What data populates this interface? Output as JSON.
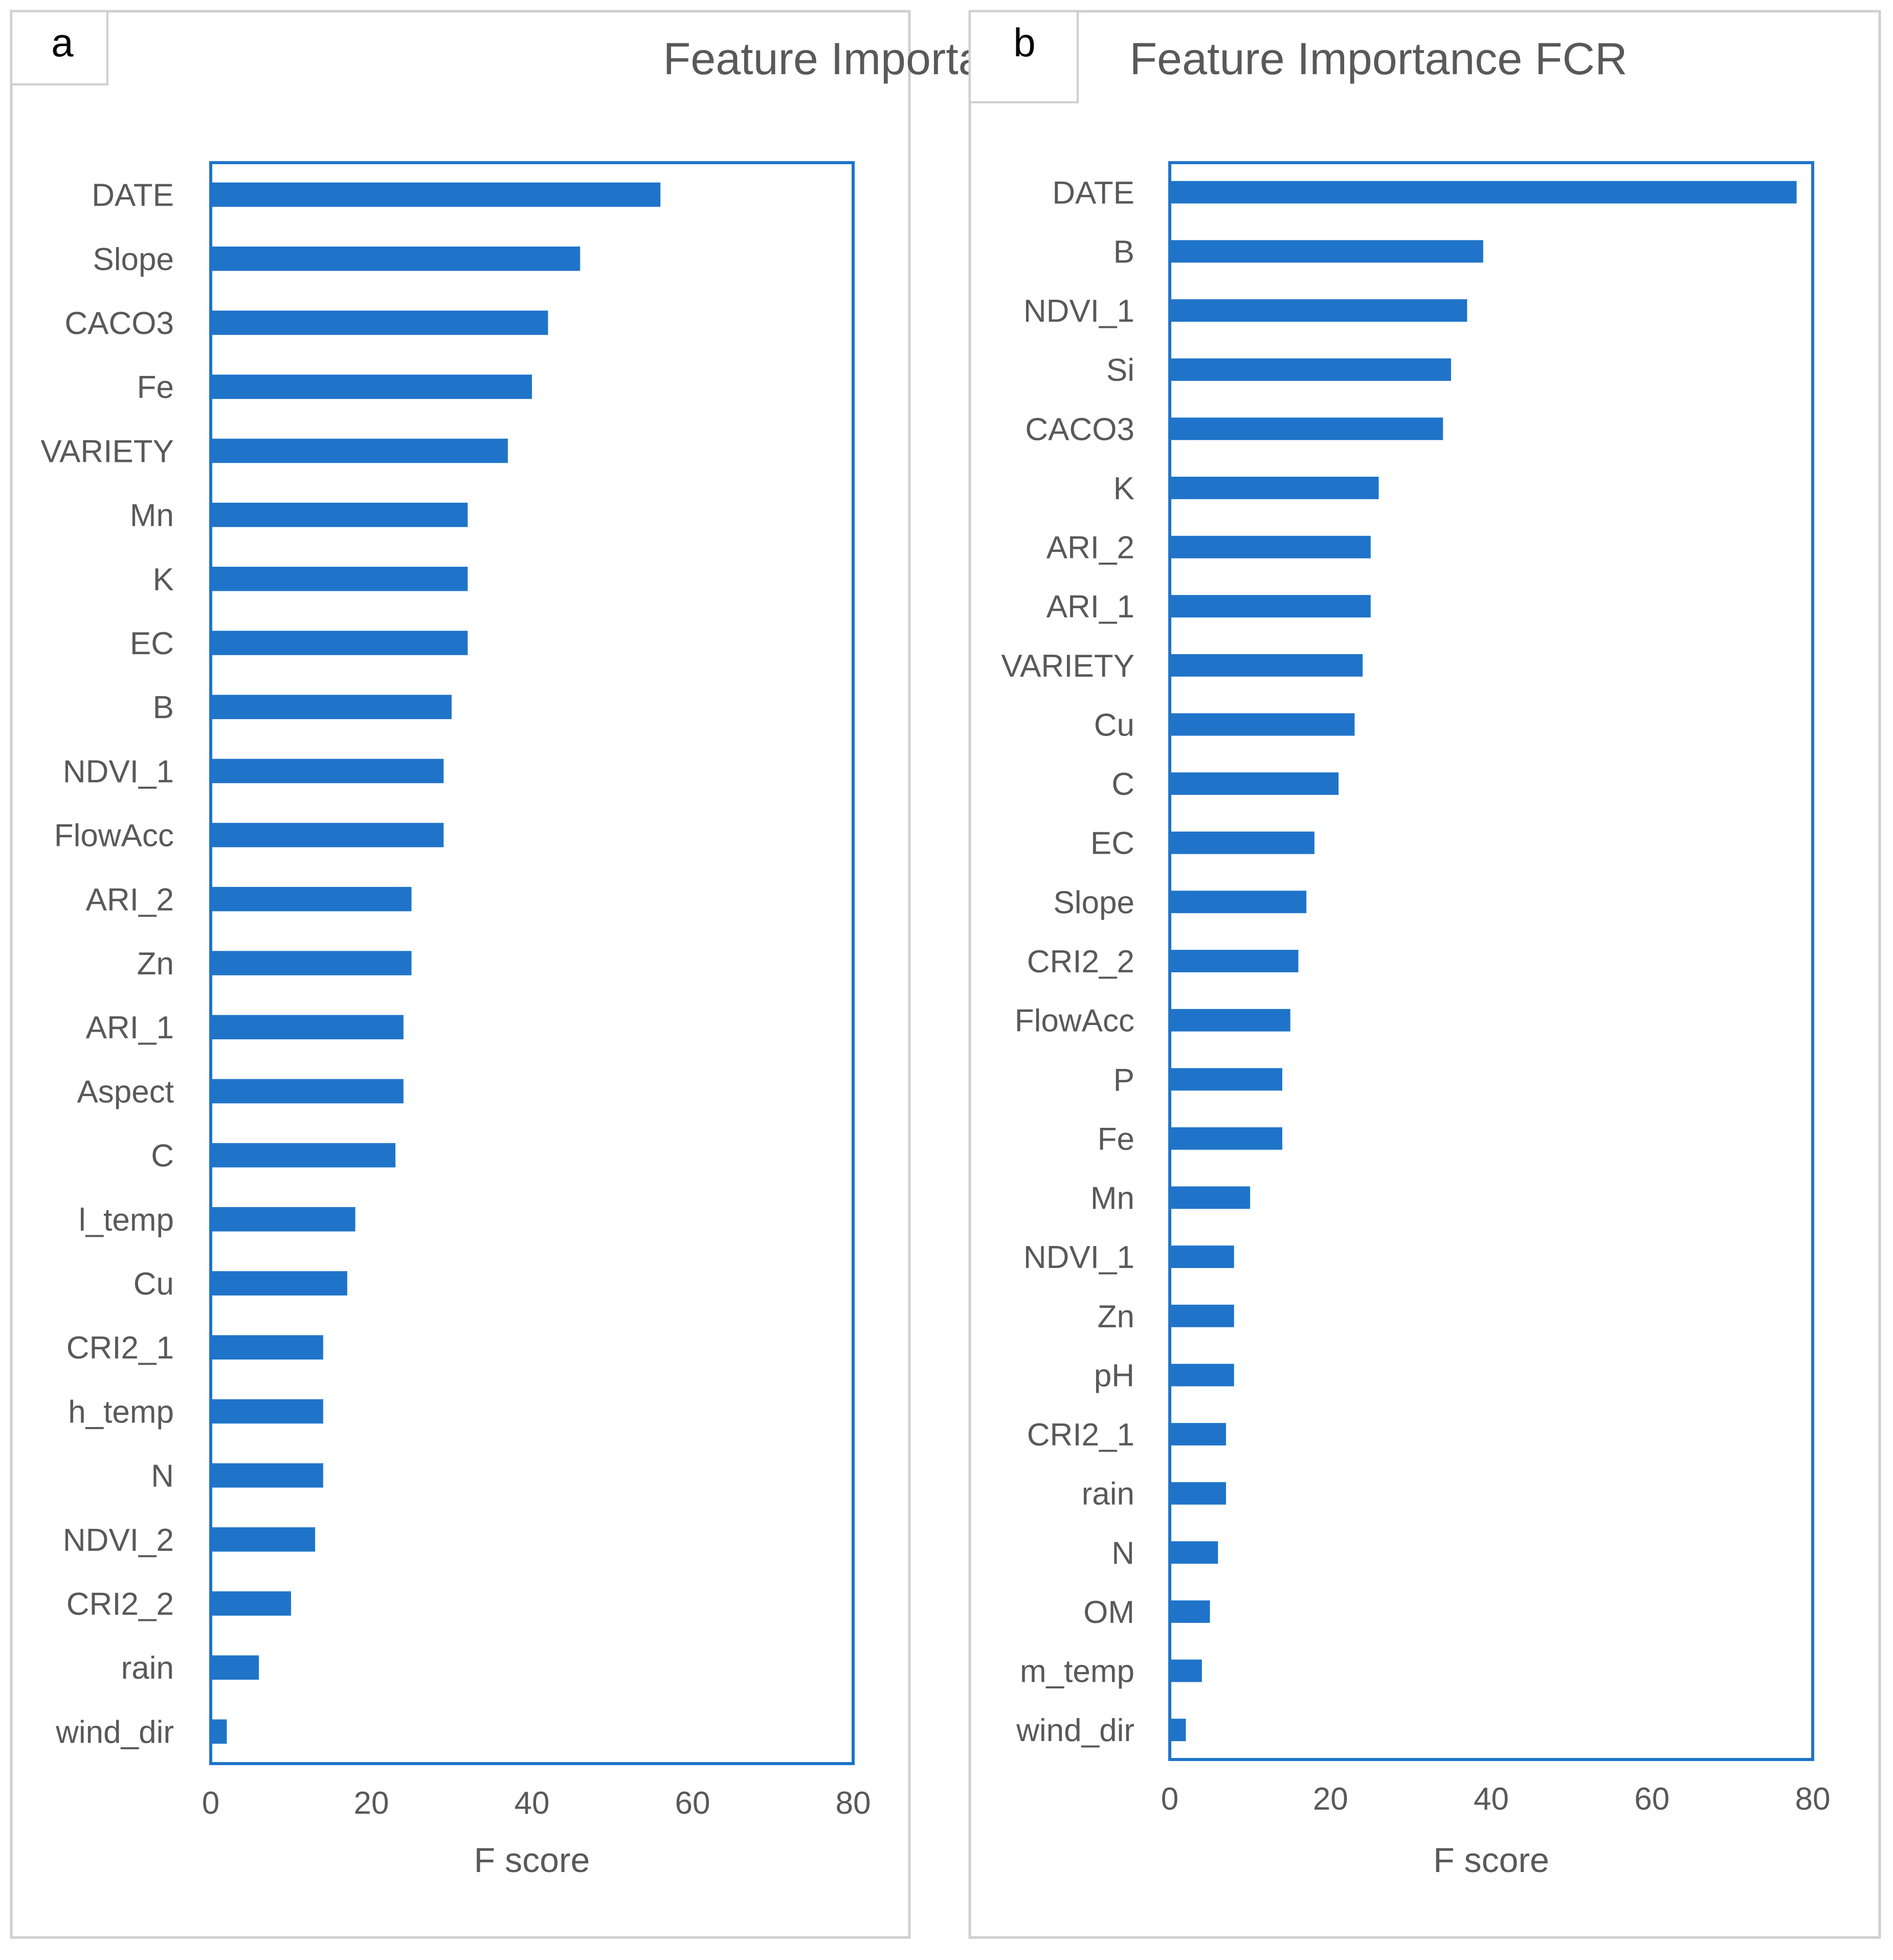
{
  "colors": {
    "bar": "#1f74c9",
    "frame": "#1f74c9",
    "panel_border": "#cfcfcf",
    "text": "#595959",
    "tag_text": "#000000"
  },
  "chart_data": [
    {
      "type": "bar",
      "orientation": "horizontal",
      "panel_label": "a",
      "title": "Feature Importance DPPH",
      "xlabel": "F score",
      "ylabel": "",
      "xlim": [
        0,
        80
      ],
      "xticks": [
        "0",
        "20",
        "40",
        "60",
        "80"
      ],
      "categories": [
        "DATE",
        "Slope",
        "CACO3",
        "Fe",
        "VARIETY",
        "Mn",
        "K",
        "EC",
        "B",
        "NDVI_1",
        "FlowAcc",
        "ARI_2",
        "Zn",
        "ARI_1",
        "Aspect",
        "C",
        "l_temp",
        "Cu",
        "CRI2_1",
        "h_temp",
        "N",
        "NDVI_2",
        "CRI2_2",
        "rain",
        "wind_dir"
      ],
      "values": [
        56,
        46,
        42,
        40,
        37,
        32,
        32,
        32,
        30,
        29,
        29,
        25,
        25,
        24,
        24,
        23,
        18,
        17,
        14,
        14,
        14,
        13,
        10,
        6,
        2
      ]
    },
    {
      "type": "bar",
      "orientation": "horizontal",
      "panel_label": "b",
      "title": "Feature Importance FCR",
      "xlabel": "F score",
      "ylabel": "",
      "xlim": [
        0,
        80
      ],
      "xticks": [
        "0",
        "20",
        "40",
        "60",
        "80"
      ],
      "categories": [
        "DATE",
        "B",
        "NDVI_1",
        "Si",
        "CACO3",
        "K",
        "ARI_2",
        "ARI_1",
        "VARIETY",
        "Cu",
        "C",
        "EC",
        "Slope",
        "CRI2_2",
        "FlowAcc",
        "P",
        "Fe",
        "Mn",
        "NDVI_1",
        "Zn",
        "pH",
        "CRI2_1",
        "rain",
        "N",
        "OM",
        "m_temp",
        "wind_dir"
      ],
      "values": [
        78,
        39,
        37,
        35,
        34,
        26,
        25,
        25,
        24,
        23,
        21,
        18,
        17,
        16,
        15,
        14,
        14,
        10,
        8,
        8,
        8,
        7,
        7,
        6,
        5,
        4,
        2
      ]
    }
  ]
}
